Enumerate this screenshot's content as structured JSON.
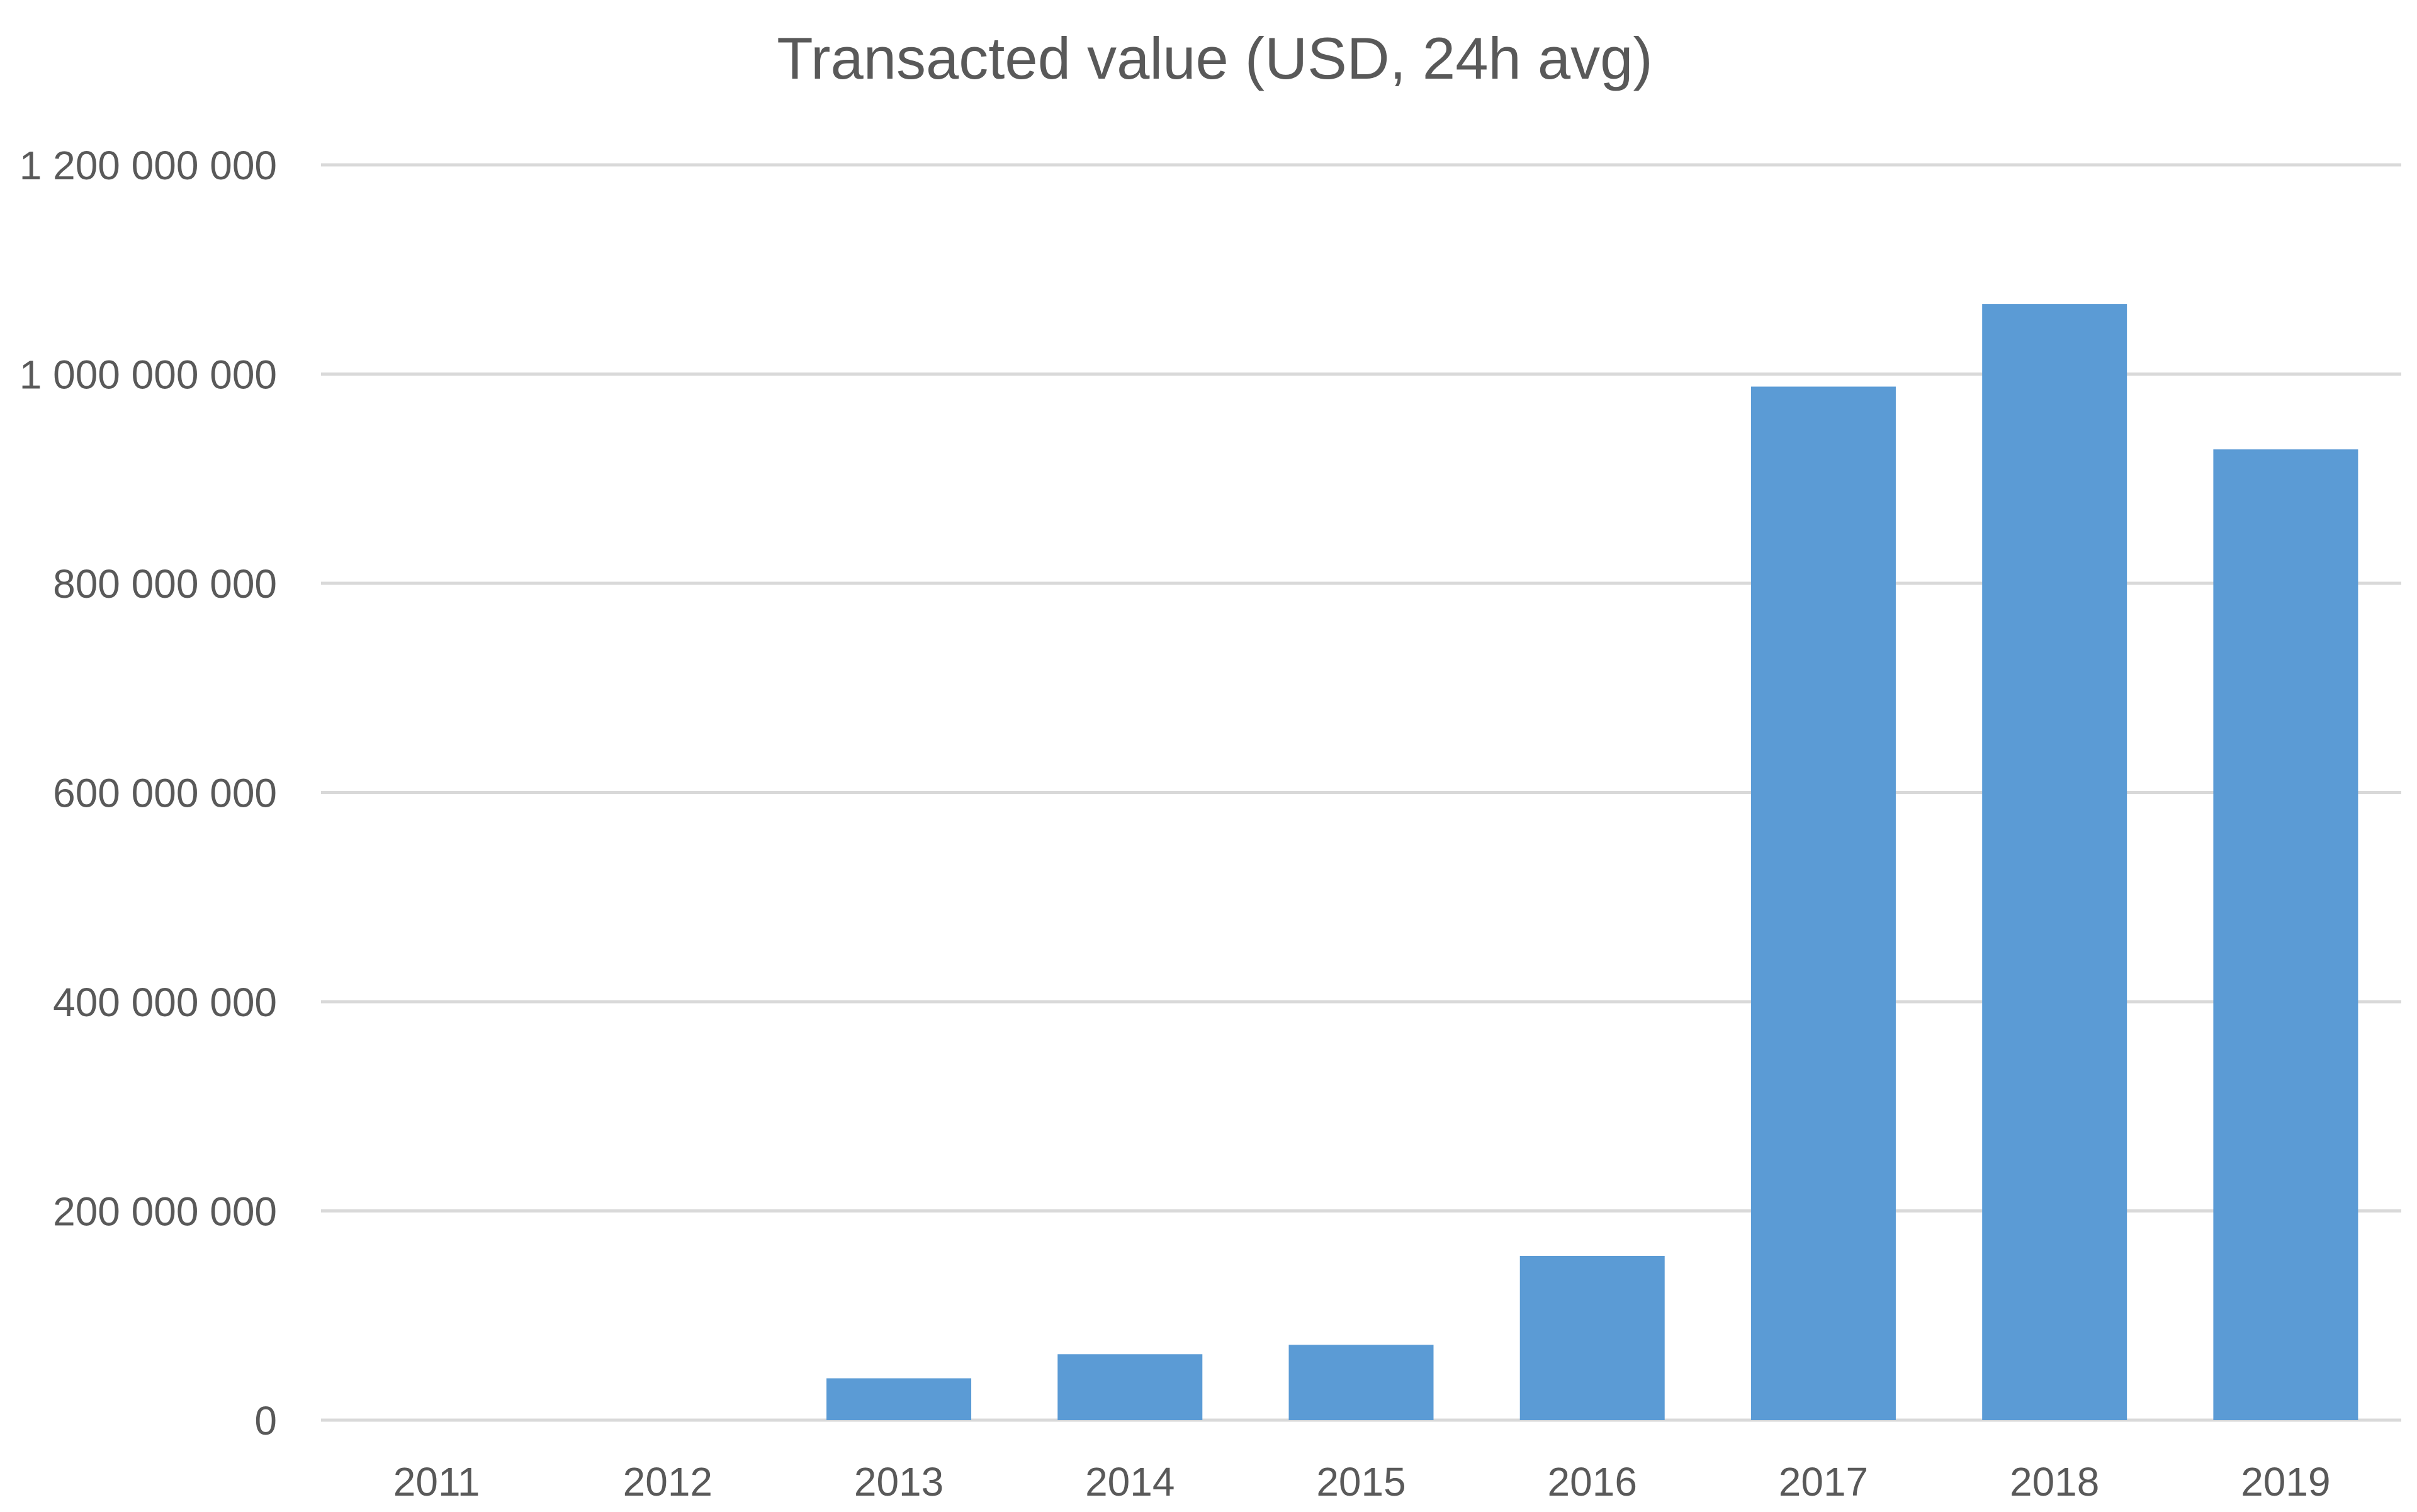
{
  "chart_data": {
    "type": "bar",
    "title": "Transacted value (USD, 24h avg)",
    "xlabel": "",
    "ylabel": "",
    "categories": [
      "2011",
      "2012",
      "2013",
      "2014",
      "2015",
      "2016",
      "2017",
      "2018",
      "2019"
    ],
    "values": [
      0,
      0,
      40000000,
      63000000,
      72000000,
      157000000,
      988000000,
      1067000000,
      928000000
    ],
    "ylim": [
      0,
      1200000000
    ],
    "yticks": [
      0,
      200000000,
      400000000,
      600000000,
      800000000,
      1000000000,
      1200000000
    ],
    "ytick_labels": [
      "0",
      "200 000 000",
      "400 000 000",
      "600 000 000",
      "800 000 000",
      "1 000 000 000",
      "1 200 000 000"
    ],
    "grid": true,
    "legend": "none",
    "colors": {
      "bar": "#5B9BD5",
      "grid": "#D9D9D9",
      "text": "#595959",
      "title": "#595959"
    }
  }
}
